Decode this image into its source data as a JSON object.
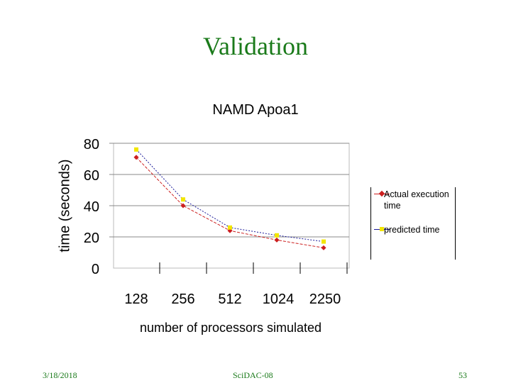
{
  "slide": {
    "title": "Validation",
    "footer_left": "3/18/2018",
    "footer_center": "SciDAC-08",
    "footer_right": "53"
  },
  "colors": {
    "actual": "#cc1f1f",
    "predicted": "#f2e600",
    "predicted_line": "#1a1a99",
    "title": "#1a7a1a"
  },
  "legend": {
    "actual": "Actual execution time",
    "predicted": "predicted time"
  },
  "chart_data": {
    "type": "line",
    "title": "NAMD Apoa1",
    "xlabel": "number of processors simulated",
    "ylabel": "time (seconds)",
    "categories": [
      "128",
      "256",
      "512",
      "1024",
      "2250"
    ],
    "yticks": [
      "0",
      "20",
      "40",
      "60",
      "80"
    ],
    "ylim": [
      0,
      80
    ],
    "grid": true,
    "legend_position": "right",
    "series": [
      {
        "name": "Actual execution time",
        "values": [
          71,
          40,
          24,
          18,
          13
        ]
      },
      {
        "name": "predicted time",
        "values": [
          76,
          44,
          26,
          21,
          17
        ]
      }
    ]
  }
}
